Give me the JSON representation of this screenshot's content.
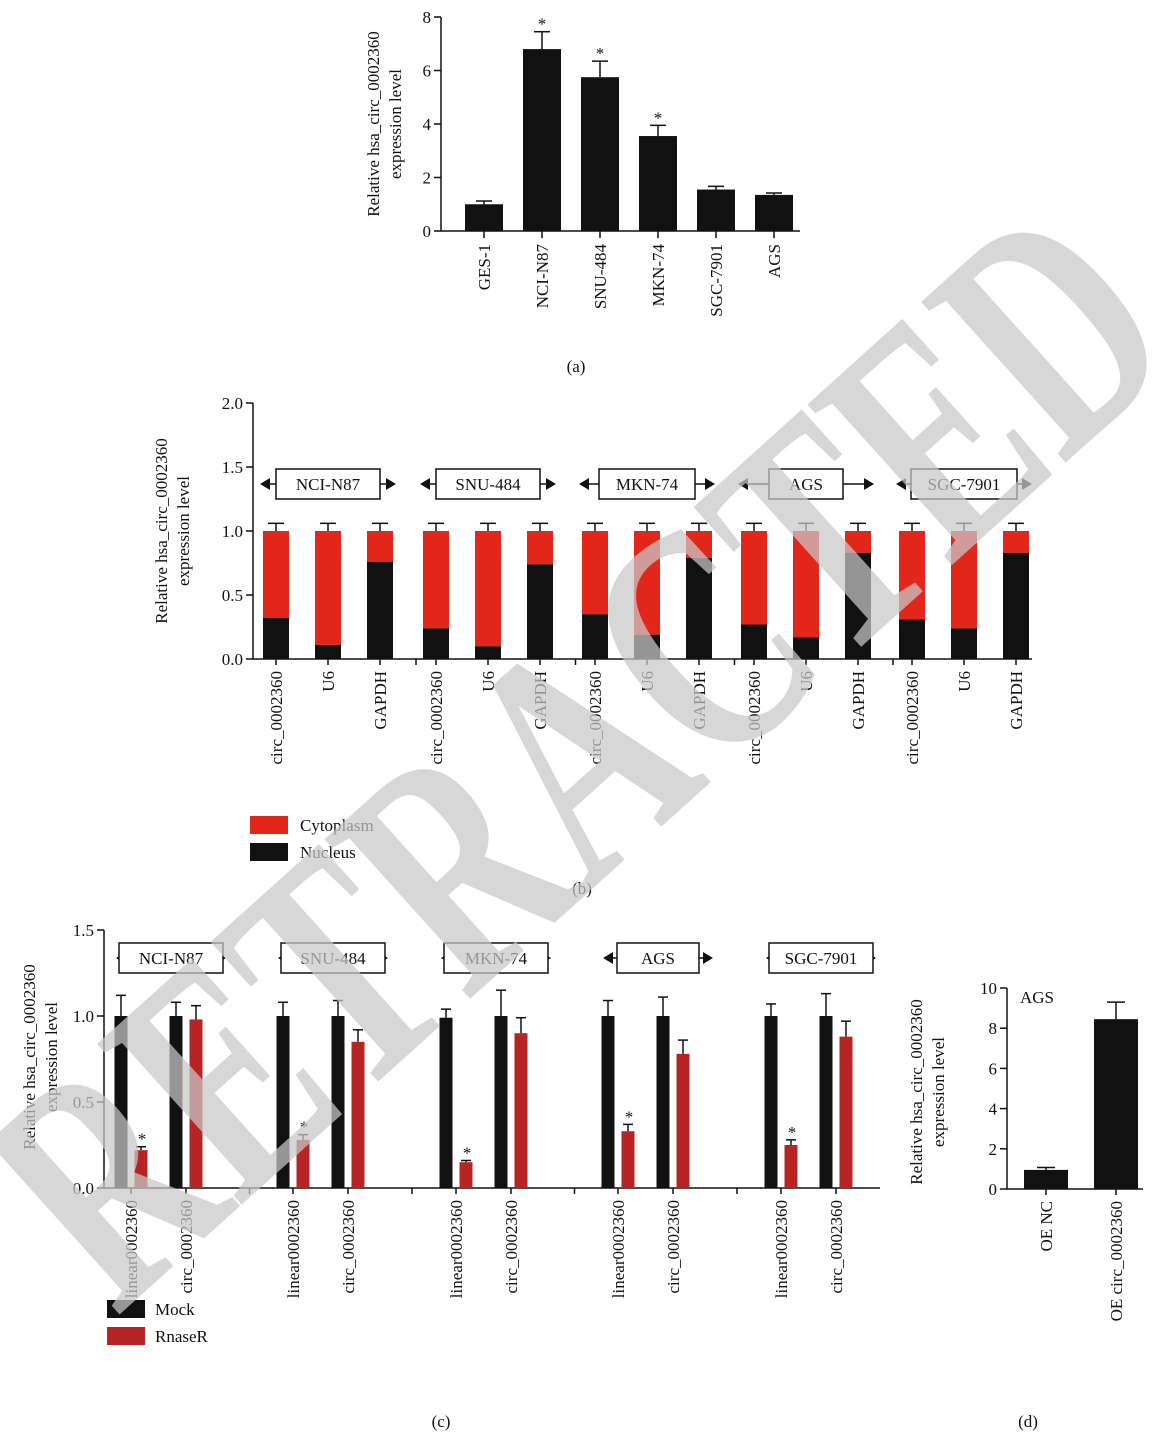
{
  "watermark": {
    "text": "RETRACTED",
    "color": "#c9c9c9"
  },
  "colors": {
    "black": "#111111",
    "red_b": "#e3261a",
    "red_c": "#b82424"
  },
  "chart_data": [
    {
      "id": "a",
      "panel_label": "(a)",
      "type": "bar",
      "ylabel_lines": [
        "Relative hsa_circ_0002360",
        "expression level"
      ],
      "ylim": [
        0,
        8
      ],
      "yticks": [
        "0",
        "2",
        "4",
        "6",
        "8"
      ],
      "categories": [
        "GES-1",
        "NCI-N87",
        "SNU-484",
        "MKN-74",
        "SGC-7901",
        "AGS"
      ],
      "values": [
        1.0,
        6.8,
        5.75,
        3.55,
        1.55,
        1.35
      ],
      "errors": [
        0.12,
        0.65,
        0.6,
        0.4,
        0.12,
        0.07
      ],
      "stars": [
        "",
        "*",
        "*",
        "*",
        "",
        ""
      ]
    },
    {
      "id": "b",
      "panel_label": "(b)",
      "type": "bar",
      "stacked": true,
      "ylabel_lines": [
        "Relative hsa_circ_0002360",
        "expression level"
      ],
      "ylim": [
        0,
        2.0
      ],
      "yticks": [
        "0.0",
        "0.5",
        "1.0",
        "1.5",
        "2.0"
      ],
      "groups": [
        "NCI-N87",
        "SNU-484",
        "MKN-74",
        "AGS",
        "SGC-7901"
      ],
      "categories": [
        "circ_0002360",
        "U6",
        "GAPDH"
      ],
      "series": [
        {
          "name": "Cytoplasm",
          "color": "#e3261a"
        },
        {
          "name": "Nucleus",
          "color": "#111111"
        }
      ],
      "nucleus_values": [
        [
          0.32,
          0.11,
          0.76
        ],
        [
          0.24,
          0.1,
          0.74
        ],
        [
          0.35,
          0.19,
          0.79
        ],
        [
          0.27,
          0.17,
          0.83
        ],
        [
          0.31,
          0.24,
          0.83
        ]
      ],
      "total": 1.0,
      "error": 0.06,
      "legend": [
        "Cytoplasm",
        "Nucleus"
      ]
    },
    {
      "id": "c",
      "panel_label": "(c)",
      "type": "bar",
      "ylabel_lines": [
        "Relative hsa_circ_0002360",
        "expression level"
      ],
      "ylim": [
        0,
        1.5
      ],
      "yticks": [
        "0.0",
        "0.5",
        "1.0",
        "1.5"
      ],
      "groups": [
        "NCI-N87",
        "SNU-484",
        "MKN-74",
        "AGS",
        "SGC-7901"
      ],
      "categories": [
        "linear0002360",
        "circ_0002360"
      ],
      "series": [
        {
          "name": "Mock",
          "color": "#111111"
        },
        {
          "name": "RnaseR",
          "color": "#b82424"
        }
      ],
      "mock_values": [
        [
          1.0,
          1.0
        ],
        [
          1.0,
          1.0
        ],
        [
          0.99,
          1.0
        ],
        [
          1.0,
          1.0
        ],
        [
          1.0,
          1.0
        ]
      ],
      "mock_errors": [
        [
          0.12,
          0.08
        ],
        [
          0.08,
          0.09
        ],
        [
          0.05,
          0.15
        ],
        [
          0.09,
          0.11
        ],
        [
          0.07,
          0.13
        ]
      ],
      "rnase_values": [
        [
          0.22,
          0.98
        ],
        [
          0.28,
          0.85
        ],
        [
          0.15,
          0.9
        ],
        [
          0.33,
          0.78
        ],
        [
          0.25,
          0.88
        ]
      ],
      "rnase_errors": [
        [
          0.02,
          0.08
        ],
        [
          0.03,
          0.07
        ],
        [
          0.01,
          0.09
        ],
        [
          0.04,
          0.08
        ],
        [
          0.03,
          0.09
        ]
      ],
      "rnase_stars": [
        [
          "*",
          ""
        ],
        [
          "*",
          ""
        ],
        [
          "*",
          ""
        ],
        [
          "*",
          ""
        ],
        [
          "*",
          ""
        ]
      ],
      "legend": [
        "Mock",
        "RnaseR"
      ]
    },
    {
      "id": "d",
      "panel_label": "(d)",
      "type": "bar",
      "ylabel_lines": [
        "Relative hsa_circ_0002360",
        "expression level"
      ],
      "ylim": [
        0,
        10
      ],
      "yticks": [
        "0",
        "2",
        "4",
        "6",
        "8",
        "10"
      ],
      "annotation": "AGS",
      "categories": [
        "OE NC",
        "OE circ_0002360"
      ],
      "values": [
        0.95,
        8.45
      ],
      "errors": [
        0.12,
        0.85
      ]
    }
  ]
}
